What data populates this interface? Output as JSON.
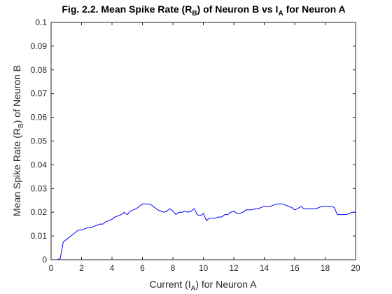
{
  "chart_data": {
    "type": "line",
    "title": {
      "prefix": "Fig. 2.2. Mean Spike Rate (R",
      "sub1": "B",
      "middle": ") of Neuron B vs I",
      "sub2": "A",
      "suffix": " for Neuron A"
    },
    "xlabel": {
      "prefix": "Current (I",
      "sub": "A",
      "suffix": ") for Neuron A"
    },
    "ylabel": {
      "prefix": "Mean Spike Rate (R",
      "sub": "B",
      "suffix": ") of Neuron B"
    },
    "xlim": [
      0,
      20
    ],
    "ylim": [
      0,
      0.1
    ],
    "xticks": [
      0,
      2,
      4,
      6,
      8,
      10,
      12,
      14,
      16,
      18,
      20
    ],
    "yticks": [
      0,
      0.01,
      0.02,
      0.03,
      0.04,
      0.05,
      0.06,
      0.07,
      0.08,
      0.09,
      0.1
    ],
    "xticklabels": [
      "0",
      "2",
      "4",
      "6",
      "8",
      "10",
      "12",
      "14",
      "16",
      "18",
      "20"
    ],
    "yticklabels": [
      "0",
      "0.01",
      "0.02",
      "0.03",
      "0.04",
      "0.05",
      "0.06",
      "0.07",
      "0.08",
      "0.09",
      "0.1"
    ],
    "grid": false,
    "line_color": "#0000ff",
    "series": [
      {
        "x": [
          0,
          0.2,
          0.4,
          0.6,
          0.8,
          1.0,
          1.2,
          1.4,
          1.6,
          1.8,
          2.0,
          2.2,
          2.4,
          2.6,
          2.8,
          3.0,
          3.2,
          3.4,
          3.6,
          3.8,
          4.0,
          4.2,
          4.4,
          4.6,
          4.8,
          5.0,
          5.2,
          5.4,
          5.6,
          5.8,
          6.0,
          6.2,
          6.4,
          6.6,
          6.8,
          7.0,
          7.2,
          7.4,
          7.6,
          7.8,
          8.0,
          8.2,
          8.4,
          8.6,
          8.8,
          9.0,
          9.2,
          9.4,
          9.6,
          9.8,
          10.0,
          10.2,
          10.4,
          10.6,
          10.8,
          11.0,
          11.2,
          11.4,
          11.6,
          11.8,
          12.0,
          12.2,
          12.4,
          12.6,
          12.8,
          13.0,
          13.2,
          13.4,
          13.6,
          13.8,
          14.0,
          14.2,
          14.4,
          14.6,
          14.8,
          15.0,
          15.2,
          15.4,
          15.6,
          15.8,
          16.0,
          16.2,
          16.4,
          16.6,
          16.8,
          17.0,
          17.2,
          17.4,
          17.6,
          17.8,
          18.0,
          18.2,
          18.4,
          18.6,
          18.8,
          19.0,
          19.2,
          19.4,
          19.6,
          19.8,
          20.0
        ],
        "values": [
          0,
          0,
          0,
          0.0005,
          0.0075,
          0.0085,
          0.0095,
          0.0105,
          0.0115,
          0.0125,
          0.0125,
          0.013,
          0.0135,
          0.0135,
          0.014,
          0.0145,
          0.015,
          0.015,
          0.016,
          0.0165,
          0.017,
          0.018,
          0.0185,
          0.019,
          0.02,
          0.019,
          0.0205,
          0.021,
          0.0215,
          0.0225,
          0.0235,
          0.0235,
          0.0235,
          0.023,
          0.022,
          0.021,
          0.0205,
          0.02,
          0.0205,
          0.0215,
          0.0205,
          0.019,
          0.02,
          0.02,
          0.0205,
          0.02,
          0.0205,
          0.0215,
          0.019,
          0.0185,
          0.0195,
          0.0165,
          0.0175,
          0.0175,
          0.0175,
          0.018,
          0.018,
          0.019,
          0.019,
          0.02,
          0.0205,
          0.0195,
          0.0195,
          0.02,
          0.021,
          0.021,
          0.021,
          0.0215,
          0.0215,
          0.022,
          0.0225,
          0.0225,
          0.0225,
          0.023,
          0.0235,
          0.0235,
          0.0235,
          0.023,
          0.0225,
          0.022,
          0.021,
          0.0215,
          0.0225,
          0.0215,
          0.0215,
          0.0215,
          0.0215,
          0.0215,
          0.022,
          0.0225,
          0.0225,
          0.0225,
          0.0225,
          0.022,
          0.019,
          0.019,
          0.019,
          0.019,
          0.0195,
          0.02,
          0.02
        ]
      }
    ]
  }
}
